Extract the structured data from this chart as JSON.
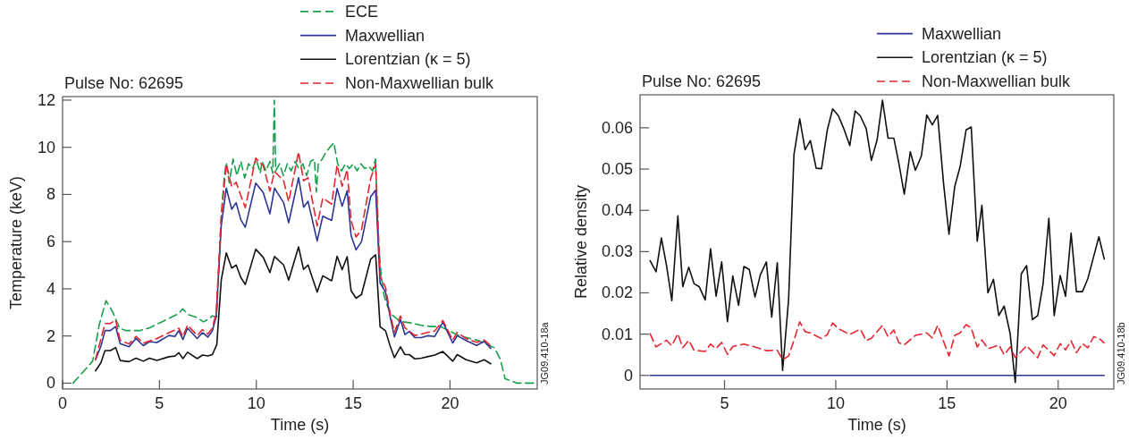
{
  "chart_data": [
    {
      "type": "line",
      "title": "Pulse No: 62695",
      "xlabel": "Time (s)",
      "ylabel": "Temperature (keV)",
      "xlim": [
        0,
        24.5
      ],
      "ylim": [
        -0.25,
        12.15
      ],
      "xticks": [
        0,
        5,
        10,
        15,
        20
      ],
      "yticks": [
        0,
        2,
        4,
        6,
        8,
        10,
        12
      ],
      "legend": "top right",
      "annotations": [
        "JG09.410-18a"
      ],
      "series": [
        {
          "name": "ECE",
          "color": "#17a04a",
          "line_style": "dashed",
          "x": [
            0.54,
            1.2,
            1.55,
            1.9,
            2.24,
            2.6,
            2.94,
            3.25,
            4.0,
            4.5,
            5.0,
            5.5,
            6.0,
            6.2,
            6.5,
            6.95,
            7.26,
            7.5,
            7.73,
            7.95,
            8.1,
            8.2,
            8.35,
            8.45,
            8.6,
            8.8,
            9.0,
            9.2,
            9.4,
            9.6,
            9.8,
            10.0,
            10.2,
            10.3,
            10.5,
            10.7,
            10.85,
            10.93,
            11.0,
            11.2,
            11.4,
            11.6,
            11.8,
            12.0,
            12.2,
            12.4,
            12.6,
            12.8,
            13.0,
            13.1,
            13.2,
            13.4,
            13.6,
            13.8,
            14.0,
            14.2,
            14.4,
            14.6,
            14.8,
            15.0,
            15.2,
            15.4,
            15.6,
            15.8,
            16.0,
            16.15,
            16.3,
            16.45,
            16.6,
            16.8,
            17.0,
            17.3,
            17.6,
            18.0,
            18.5,
            19.0,
            19.5,
            20.0,
            20.5,
            21.0,
            21.5,
            22.0,
            22.3,
            22.6,
            22.84,
            23.46,
            24.1,
            24.4
          ],
          "values": [
            0,
            0.6,
            0.93,
            2.5,
            3.5,
            3.0,
            2.33,
            2.23,
            2.23,
            2.35,
            2.55,
            2.75,
            2.95,
            3.15,
            2.9,
            2.78,
            2.6,
            2.7,
            2.85,
            2.8,
            5.5,
            7.2,
            8.8,
            9.35,
            8.5,
            9.5,
            8.8,
            9.4,
            8.7,
            9.3,
            9.1,
            9.5,
            8.9,
            9.4,
            9.0,
            9.4,
            8.9,
            12.0,
            9.0,
            9.3,
            8.8,
            9.3,
            9.0,
            9.4,
            9.1,
            9.3,
            8.8,
            9.4,
            9.5,
            8.1,
            9.3,
            9.5,
            9.8,
            10.0,
            10.2,
            9.3,
            9.0,
            9.3,
            9.1,
            9.3,
            9.0,
            9.3,
            9.1,
            9.2,
            9.0,
            9.5,
            6.0,
            4.5,
            3.7,
            3.2,
            2.9,
            2.7,
            2.6,
            2.55,
            2.45,
            2.4,
            2.4,
            2.2,
            2.0,
            1.9,
            1.8,
            1.6,
            1.5,
            1.0,
            0.19,
            0.0,
            0.0,
            0.0
          ]
        },
        {
          "name": "Maxwellian",
          "color": "#2b3595",
          "line_style": "solid",
          "x": [
            1.7,
            1.98,
            2.19,
            2.47,
            2.74,
            2.97,
            3.43,
            3.79,
            4.17,
            4.48,
            4.87,
            5.49,
            5.8,
            6.0,
            6.21,
            6.45,
            6.95,
            7.22,
            7.5,
            7.73,
            7.93,
            8.19,
            8.45,
            8.73,
            8.96,
            9.2,
            9.43,
            9.97,
            10.36,
            10.7,
            10.94,
            11.41,
            11.67,
            12.18,
            12.44,
            12.67,
            13.14,
            13.43,
            13.89,
            14.17,
            14.43,
            14.69,
            14.89,
            15.15,
            15.43,
            15.9,
            16.16,
            16.39,
            16.67,
            16.9,
            17.13,
            17.44,
            17.67,
            17.9,
            18.18,
            18.52,
            18.83,
            19.21,
            19.63,
            20.14,
            20.37,
            20.83,
            21.37,
            21.76,
            22.1
          ],
          "values": [
            0.99,
            1.57,
            2.23,
            2.23,
            2.4,
            1.67,
            1.54,
            1.89,
            1.59,
            1.76,
            1.72,
            2.02,
            1.98,
            2.23,
            1.85,
            2.33,
            1.89,
            2.14,
            1.95,
            2.21,
            2.84,
            6.67,
            8.27,
            7.37,
            7.65,
            6.93,
            6.61,
            8.48,
            8.07,
            7.18,
            8.27,
            7.65,
            6.8,
            8.71,
            7.46,
            7.71,
            6.03,
            7.08,
            6.9,
            8.25,
            7.5,
            8.16,
            6.26,
            5.65,
            6.0,
            7.9,
            8.19,
            4.24,
            3.86,
            2.85,
            1.96,
            2.7,
            2.06,
            2.19,
            1.93,
            1.93,
            2.01,
            1.98,
            2.59,
            1.7,
            2.01,
            1.81,
            1.6,
            1.77,
            1.48
          ]
        },
        {
          "name": "Lorentzian (κ = 5)",
          "color": "#111111",
          "line_style": "solid",
          "x": [
            1.7,
            1.98,
            2.19,
            2.47,
            2.74,
            2.97,
            3.43,
            3.79,
            4.17,
            4.48,
            4.87,
            5.49,
            5.8,
            6.0,
            6.21,
            6.45,
            6.95,
            7.22,
            7.5,
            7.73,
            7.96,
            8.19,
            8.45,
            8.73,
            8.96,
            9.2,
            9.43,
            9.97,
            10.36,
            10.7,
            10.94,
            11.41,
            11.67,
            12.18,
            12.44,
            12.67,
            13.14,
            13.43,
            13.89,
            14.17,
            14.43,
            14.69,
            14.89,
            15.15,
            15.43,
            15.9,
            16.16,
            16.39,
            16.67,
            16.9,
            17.13,
            17.44,
            17.67,
            17.9,
            18.18,
            18.52,
            18.83,
            19.21,
            19.63,
            20.14,
            20.37,
            20.83,
            21.37,
            21.76,
            22.1
          ],
          "values": [
            0.52,
            0.87,
            1.38,
            1.38,
            1.51,
            0.96,
            0.91,
            1.06,
            0.93,
            1.06,
            0.96,
            1.12,
            1.15,
            1.29,
            1.04,
            1.31,
            1.04,
            1.19,
            1.15,
            1.21,
            1.63,
            4.37,
            5.52,
            4.88,
            5.01,
            4.48,
            4.18,
            5.68,
            5.33,
            4.69,
            5.37,
            5.01,
            4.37,
            5.78,
            4.82,
            5.01,
            3.86,
            4.55,
            4.34,
            5.38,
            4.81,
            5.36,
            3.92,
            3.6,
            3.76,
            5.25,
            5.44,
            2.39,
            2.22,
            1.59,
            1.08,
            1.54,
            1.21,
            1.21,
            1.03,
            1.06,
            1.12,
            1.19,
            1.34,
            0.93,
            1.21,
            0.99,
            0.86,
            0.99,
            0.82
          ]
        },
        {
          "name": "Non-Maxwellian bulk",
          "color": "#e52530",
          "line_style": "dashed",
          "x": [
            1.7,
            2.19,
            2.47,
            2.74,
            2.97,
            3.43,
            3.79,
            4.17,
            4.87,
            5.49,
            6.0,
            6.21,
            6.45,
            6.95,
            7.22,
            7.5,
            7.73,
            7.93,
            8.19,
            8.45,
            8.73,
            8.96,
            9.2,
            9.43,
            9.97,
            10.36,
            10.7,
            10.94,
            11.41,
            11.67,
            12.18,
            12.44,
            12.67,
            13.14,
            13.43,
            13.89,
            14.17,
            14.43,
            14.69,
            14.89,
            15.15,
            15.43,
            15.9,
            16.16,
            16.39,
            16.67,
            16.9,
            17.13,
            17.44,
            17.67,
            17.9,
            18.18,
            18.52,
            18.83,
            19.21,
            19.63,
            20.14,
            20.37,
            20.83,
            21.37,
            21.76,
            22.1
          ],
          "values": [
            1.0,
            2.53,
            2.53,
            2.68,
            1.82,
            1.66,
            1.98,
            1.7,
            1.89,
            2.14,
            2.33,
            1.98,
            2.46,
            2.02,
            2.27,
            2.08,
            2.33,
            2.97,
            7.05,
            9.29,
            8.33,
            8.52,
            7.95,
            7.44,
            9.54,
            9.22,
            8.14,
            8.97,
            8.58,
            7.69,
            9.8,
            8.58,
            8.71,
            6.67,
            7.85,
            7.59,
            9.24,
            8.35,
            9.05,
            6.9,
            6.2,
            6.51,
            8.67,
            9.3,
            4.55,
            4.05,
            2.97,
            2.15,
            2.85,
            2.34,
            2.21,
            2.02,
            2.08,
            2.15,
            2.21,
            2.66,
            1.82,
            2.15,
            1.89,
            1.73,
            1.83,
            1.58
          ]
        }
      ]
    },
    {
      "type": "line",
      "title": "Pulse No: 62695",
      "xlabel": "Time (s)",
      "ylabel": "Relative density",
      "xlim": [
        1.2,
        22.5
      ],
      "ylim": [
        -0.0033,
        0.068
      ],
      "xticks": [
        5,
        10,
        15,
        20
      ],
      "yticks": [
        0,
        0.01,
        0.02,
        0.03,
        0.04,
        0.05,
        0.06
      ],
      "legend": "top right",
      "annotations": [
        "JG09.410-18b"
      ],
      "series": [
        {
          "name": "Maxwellian",
          "color": "#2b3595",
          "line_style": "solid",
          "x": [
            1.65,
            22.07
          ],
          "values": [
            0,
            0
          ]
        },
        {
          "name": "Lorentzian (κ = 5)",
          "color": "#111111",
          "line_style": "solid",
          "x": [
            1.65,
            1.92,
            2.16,
            2.39,
            2.63,
            2.9,
            3.12,
            3.39,
            3.63,
            3.86,
            4.13,
            4.37,
            4.62,
            4.87,
            5.13,
            5.37,
            5.63,
            5.87,
            6.11,
            6.37,
            6.61,
            6.88,
            7.12,
            7.37,
            7.61,
            7.88,
            8.12,
            8.38,
            8.62,
            8.86,
            9.12,
            9.36,
            9.62,
            9.86,
            10.12,
            10.36,
            10.63,
            10.87,
            11.1,
            11.37,
            11.6,
            11.86,
            12.1,
            12.35,
            12.61,
            12.84,
            13.08,
            13.35,
            13.58,
            13.85,
            14.09,
            14.34,
            14.58,
            14.85,
            15.09,
            15.35,
            15.59,
            15.86,
            16.09,
            16.36,
            16.57,
            16.84,
            17.09,
            17.33,
            17.57,
            17.84,
            18.07,
            18.34,
            18.58,
            18.84,
            19.08,
            19.32,
            19.58,
            19.82,
            20.09,
            20.33,
            20.58,
            20.82,
            21.09,
            21.33,
            21.6,
            21.83,
            22.07
          ],
          "values": [
            0.0278,
            0.0251,
            0.0333,
            0.0267,
            0.0181,
            0.0387,
            0.0215,
            0.0262,
            0.0222,
            0.0215,
            0.0183,
            0.0307,
            0.0192,
            0.0275,
            0.013,
            0.0241,
            0.017,
            0.0264,
            0.0257,
            0.019,
            0.0244,
            0.0275,
            0.0141,
            0.0273,
            0.0012,
            0.0184,
            0.0535,
            0.0622,
            0.0547,
            0.0569,
            0.0502,
            0.0501,
            0.0595,
            0.0646,
            0.0629,
            0.0598,
            0.0557,
            0.0641,
            0.0629,
            0.0598,
            0.0521,
            0.0571,
            0.0667,
            0.0575,
            0.0575,
            0.0513,
            0.0439,
            0.0542,
            0.0497,
            0.0532,
            0.0631,
            0.0607,
            0.063,
            0.0463,
            0.0342,
            0.0458,
            0.0506,
            0.0595,
            0.0602,
            0.0325,
            0.0412,
            0.02,
            0.0233,
            0.0145,
            0.0168,
            0.0101,
            -0.0017,
            0.0246,
            0.0266,
            0.0135,
            0.0145,
            0.0222,
            0.0381,
            0.0145,
            0.0242,
            0.0192,
            0.0345,
            0.0203,
            0.0203,
            0.0234,
            0.0289,
            0.0336,
            0.0282
          ]
        },
        {
          "name": "Non-Maxwellian bulk",
          "color": "#e52530",
          "line_style": "dashed",
          "x": [
            1.65,
            1.92,
            2.39,
            2.63,
            2.9,
            3.12,
            3.39,
            3.63,
            4.13,
            4.37,
            4.62,
            4.87,
            5.13,
            5.37,
            5.87,
            6.37,
            6.88,
            7.37,
            7.61,
            7.88,
            8.12,
            8.38,
            8.62,
            8.86,
            9.36,
            9.62,
            9.86,
            10.12,
            10.63,
            11.1,
            11.37,
            11.6,
            12.1,
            12.35,
            12.61,
            12.84,
            13.08,
            13.58,
            14.09,
            14.34,
            14.58,
            15.09,
            15.35,
            15.59,
            15.86,
            16.09,
            16.36,
            16.57,
            16.84,
            17.09,
            17.33,
            17.57,
            17.84,
            18.07,
            18.34,
            18.58,
            19.08,
            19.32,
            19.82,
            20.09,
            20.33,
            20.58,
            20.82,
            21.09,
            21.33,
            21.6,
            21.83,
            22.07
          ],
          "values": [
            0.0101,
            0.0069,
            0.0085,
            0.0072,
            0.0101,
            0.0067,
            0.0085,
            0.0061,
            0.0058,
            0.0076,
            0.0065,
            0.008,
            0.0051,
            0.007,
            0.0076,
            0.0069,
            0.006,
            0.0061,
            0.0038,
            0.0047,
            0.0085,
            0.013,
            0.0106,
            0.0103,
            0.0089,
            0.0099,
            0.0127,
            0.0113,
            0.0099,
            0.0112,
            0.0084,
            0.009,
            0.0121,
            0.0094,
            0.011,
            0.0079,
            0.0074,
            0.0097,
            0.0103,
            0.0091,
            0.0121,
            0.0047,
            0.0097,
            0.0103,
            0.0123,
            0.0115,
            0.0069,
            0.0086,
            0.0065,
            0.0069,
            0.0074,
            0.005,
            0.0069,
            0.0043,
            0.0058,
            0.0072,
            0.0043,
            0.0074,
            0.0048,
            0.0077,
            0.0062,
            0.0084,
            0.0055,
            0.0077,
            0.0067,
            0.0094,
            0.009,
            0.0079
          ]
        }
      ]
    }
  ]
}
